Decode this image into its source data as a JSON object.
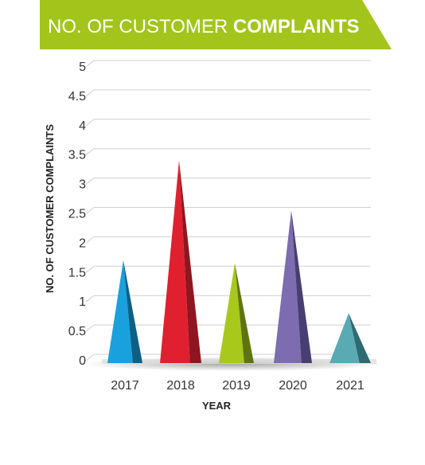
{
  "chart_data": {
    "type": "bar",
    "title_regular": "NO. OF CUSTOMER ",
    "title_bold": "COMPLAINTS",
    "xlabel": "YEAR",
    "ylabel": "NO. OF CUSTOMER COMPLAINTS",
    "categories": [
      "2017",
      "2018",
      "2019",
      "2020",
      "2021"
    ],
    "values": [
      1.6,
      3.3,
      1.55,
      2.45,
      0.7
    ],
    "ylim": [
      0,
      5
    ],
    "yticks": [
      "0",
      "0.5",
      "1",
      "1.5",
      "2",
      "2.5",
      "3",
      "3.5",
      "4",
      "4.5",
      "5"
    ],
    "grid": true,
    "colors": {
      "banner": "#a3c41a",
      "grid": "#cfcfcf",
      "bars": [
        "#1aa0dc",
        "#e0202e",
        "#a8c81c",
        "#7d6cb0",
        "#5aaab4"
      ],
      "bars_shade": [
        "#0d5f86",
        "#8e1620",
        "#5f7410",
        "#493e70",
        "#2f6a72"
      ]
    }
  }
}
